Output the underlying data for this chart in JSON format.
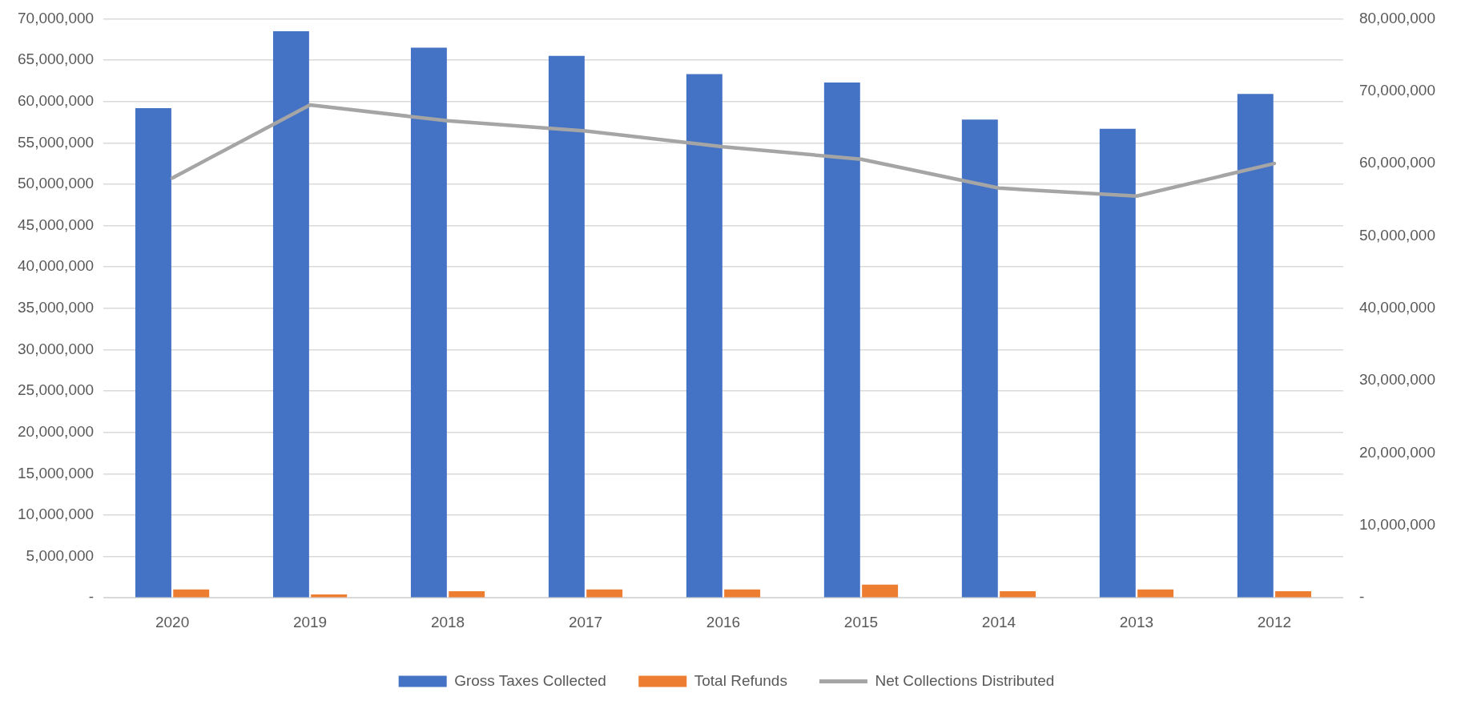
{
  "chart_data": {
    "type": "bar",
    "categories": [
      "2020",
      "2019",
      "2018",
      "2017",
      "2016",
      "2015",
      "2014",
      "2013",
      "2012"
    ],
    "series": [
      {
        "name": "Gross Taxes Collected",
        "color": "#4472c4",
        "values": [
          59200000,
          68500000,
          66500000,
          65500000,
          63300000,
          62300000,
          57800000,
          56700000,
          60900000
        ]
      },
      {
        "name": "Total Refunds",
        "color": "#ed7d31",
        "values": [
          1000000,
          400000,
          800000,
          1000000,
          1000000,
          1600000,
          800000,
          1000000,
          800000
        ]
      },
      {
        "name": "Net Collections Distributed",
        "type": "line",
        "axis": "y2",
        "color": "#a5a5a5",
        "marker": "none",
        "values": [
          58000000,
          68100000,
          65900000,
          64500000,
          62300000,
          60600000,
          56600000,
          55500000,
          60000000
        ]
      }
    ],
    "ylim": [
      0,
      70000000
    ],
    "yticks": [
      {
        "value": 0,
        "label": "-"
      },
      {
        "value": 5000000,
        "label": "5,000,000"
      },
      {
        "value": 10000000,
        "label": "10,000,000"
      },
      {
        "value": 15000000,
        "label": "15,000,000"
      },
      {
        "value": 20000000,
        "label": "20,000,000"
      },
      {
        "value": 25000000,
        "label": "25,000,000"
      },
      {
        "value": 30000000,
        "label": "30,000,000"
      },
      {
        "value": 35000000,
        "label": "35,000,000"
      },
      {
        "value": 40000000,
        "label": "40,000,000"
      },
      {
        "value": 45000000,
        "label": "45,000,000"
      },
      {
        "value": 50000000,
        "label": "50,000,000"
      },
      {
        "value": 55000000,
        "label": "55,000,000"
      },
      {
        "value": 60000000,
        "label": "60,000,000"
      },
      {
        "value": 65000000,
        "label": "65,000,000"
      },
      {
        "value": 70000000,
        "label": "70,000,000"
      }
    ],
    "y2lim": [
      0,
      80000000
    ],
    "y2ticks": [
      {
        "value": 0,
        "label": "-"
      },
      {
        "value": 10000000,
        "label": "10,000,000"
      },
      {
        "value": 20000000,
        "label": "20,000,000"
      },
      {
        "value": 30000000,
        "label": "30,000,000"
      },
      {
        "value": 40000000,
        "label": "40,000,000"
      },
      {
        "value": 50000000,
        "label": "50,000,000"
      },
      {
        "value": 60000000,
        "label": "60,000,000"
      },
      {
        "value": 70000000,
        "label": "70,000,000"
      },
      {
        "value": 80000000,
        "label": "80,000,000"
      }
    ],
    "grid": "y",
    "legend": "bottom"
  }
}
